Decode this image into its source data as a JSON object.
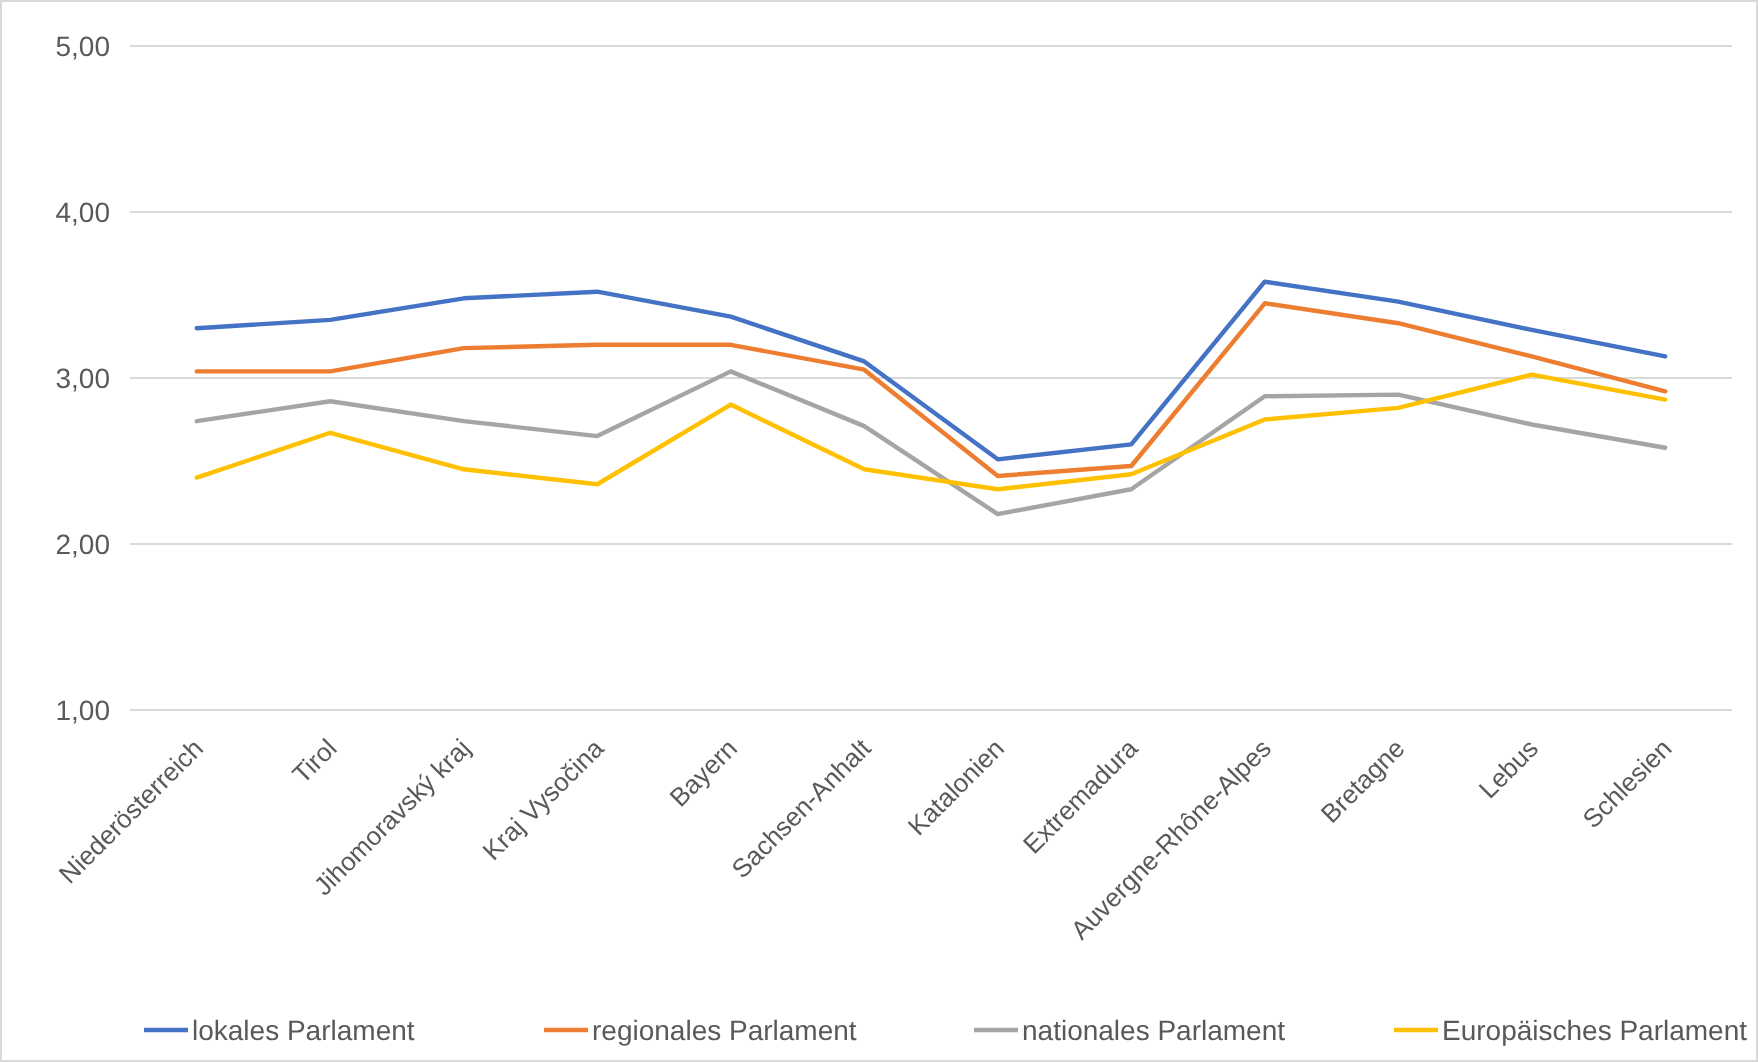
{
  "chart_data": {
    "type": "line",
    "categories": [
      "Niederösterreich",
      "Tirol",
      "Jihomoravský kraj",
      "Kraj Vysočina",
      "Bayern",
      "Sachsen-Anhalt",
      "Katalonien",
      "Extremadura",
      "Auvergne-Rhône-Alpes",
      "Bretagne",
      "Lebus",
      "Schlesien"
    ],
    "series": [
      {
        "name": "lokales Parlament",
        "color": "#4472c4",
        "values": [
          3.3,
          3.35,
          3.48,
          3.52,
          3.37,
          3.1,
          2.51,
          2.6,
          3.58,
          3.46,
          3.29,
          3.13
        ]
      },
      {
        "name": "regionales Parlament",
        "color": "#ed7d31",
        "values": [
          3.04,
          3.04,
          3.18,
          3.2,
          3.2,
          3.05,
          2.41,
          2.47,
          3.45,
          3.33,
          3.13,
          2.92
        ]
      },
      {
        "name": "nationales Parlament",
        "color": "#a5a5a5",
        "values": [
          2.74,
          2.86,
          2.74,
          2.65,
          3.04,
          2.71,
          2.18,
          2.33,
          2.89,
          2.9,
          2.72,
          2.58
        ]
      },
      {
        "name": "Europäisches Parlament",
        "color": "#ffc000",
        "values": [
          2.4,
          2.67,
          2.45,
          2.36,
          2.84,
          2.45,
          2.33,
          2.42,
          2.75,
          2.82,
          3.02,
          2.87
        ]
      }
    ],
    "ylim": [
      1,
      5
    ],
    "yticks": [
      {
        "value": 1,
        "label": "1,00"
      },
      {
        "value": 2,
        "label": "2,00"
      },
      {
        "value": 3,
        "label": "3,00"
      },
      {
        "value": 4,
        "label": "4,00"
      },
      {
        "value": 5,
        "label": "5,00"
      }
    ],
    "grid": "y",
    "legend": "bottom",
    "marker": "none",
    "line_style": "solid"
  }
}
